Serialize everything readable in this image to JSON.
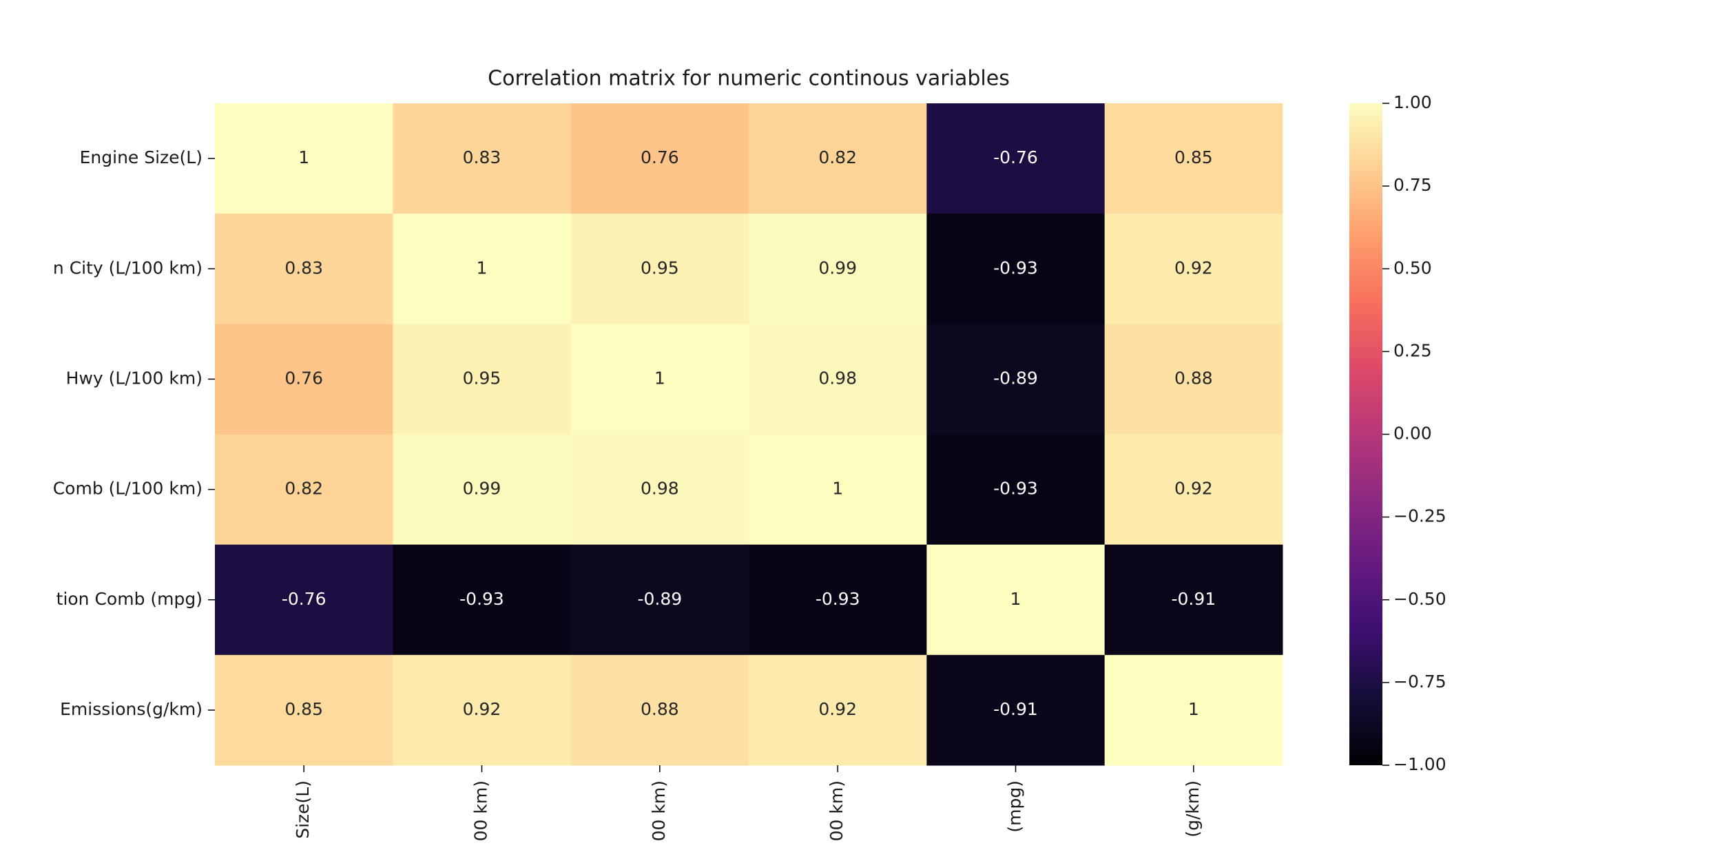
{
  "chart_data": {
    "type": "heatmap",
    "title": "Correlation matrix for numeric continous variables",
    "rows": [
      "Engine Size(L)",
      "n City (L/100 km)",
      "Hwy (L/100 km)",
      "Comb (L/100 km)",
      "tion Comb (mpg)",
      "Emissions(g/km)"
    ],
    "columns": [
      "Size(L)",
      "00 km)",
      "00 km)",
      "00 km)",
      "(mpg)",
      "(g/km)"
    ],
    "values": [
      [
        1,
        0.83,
        0.76,
        0.82,
        -0.76,
        0.85
      ],
      [
        0.83,
        1,
        0.95,
        0.99,
        -0.93,
        0.92
      ],
      [
        0.76,
        0.95,
        1,
        0.98,
        -0.89,
        0.88
      ],
      [
        0.82,
        0.99,
        0.98,
        1,
        -0.93,
        0.92
      ],
      [
        -0.76,
        -0.93,
        -0.89,
        -0.93,
        1,
        -0.91
      ],
      [
        0.85,
        0.92,
        0.88,
        0.92,
        -0.91,
        1
      ]
    ],
    "colormap": "magma",
    "clim": [
      -1,
      1
    ],
    "cticks": [
      {
        "value": 1,
        "label": "1.00"
      },
      {
        "value": 0.75,
        "label": "0.75"
      },
      {
        "value": 0.5,
        "label": "0.50"
      },
      {
        "value": 0.25,
        "label": "0.25"
      },
      {
        "value": 0,
        "label": "0.00"
      },
      {
        "value": -0.25,
        "label": "−0.25"
      },
      {
        "value": -0.5,
        "label": "−0.50"
      },
      {
        "value": -0.75,
        "label": "−0.75"
      },
      {
        "value": -1,
        "label": "−1.00"
      }
    ]
  }
}
